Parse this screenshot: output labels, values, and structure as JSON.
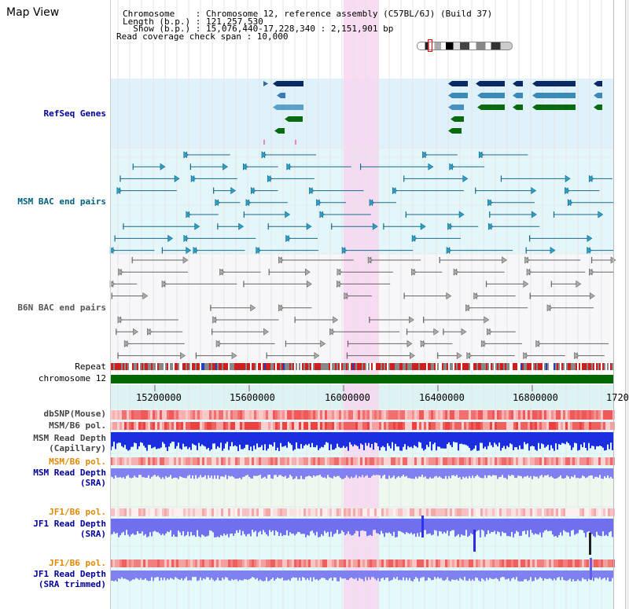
{
  "page_title": "Map View",
  "header": {
    "chromosome": "Chromosome    : Chromosome 12, reference assembly (C57BL/6J) (Build 37)",
    "length": "Length (b.p.) : 121,257,530",
    "show": "  Show (b.p.) : 15,076,440-17,228,340 : 2,151,901 bp",
    "coverage": "Read coverage check span : 10,000"
  },
  "tracks": {
    "refseq": "RefSeq Genes",
    "msm_bac": "MSM BAC end pairs",
    "b6n_bac": "B6N BAC end pairs",
    "repeat": "Repeat",
    "chromosome": "chromosome 12",
    "dbsnp": "dbSNP(Mouse)",
    "msm_pol1": "MSM/B6 pol.",
    "msm_depth_cap_1": "MSM Read Depth",
    "msm_depth_cap_2": "(Capillary)",
    "msm_pol2": "MSM/B6 pol.",
    "msm_depth_sra_1": "MSM Read Depth",
    "msm_depth_sra_2": "(SRA)",
    "jf1_pol1": "JF1/B6 pol.",
    "jf1_depth_sra_1": "JF1 Read Depth",
    "jf1_depth_sra_2": "(SRA)",
    "jf1_pol2": "JF1/B6 pol.",
    "jf1_depth_trim_1": "JF1 Read Depth",
    "jf1_depth_trim_2": "(SRA trimmed)"
  },
  "axis": {
    "ticks": [
      "15200000",
      "15600000",
      "16000000",
      "16400000",
      "16800000",
      "1720"
    ]
  },
  "colors": {
    "refseq_bg": "#dff1fa",
    "msm_bg": "#e3f6fa",
    "b6n_bg": "#f7f7fa",
    "highlight": "#f8d6f0",
    "refseq_label": "#000099",
    "msm_label": "#006080",
    "b6n_label": "#555555",
    "orange_label": "#e08800",
    "blue_label": "#000099",
    "chrom_bar": "#006600"
  }
}
